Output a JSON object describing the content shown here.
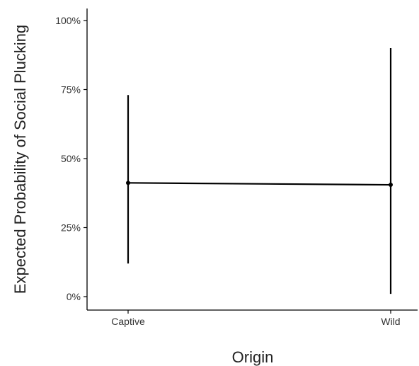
{
  "chart_data": {
    "type": "line",
    "categories": [
      "Captive",
      "Wild"
    ],
    "series": [
      {
        "values": [
          0.412,
          0.405
        ],
        "lower": [
          0.12,
          0.01
        ],
        "upper": [
          0.73,
          0.9
        ]
      }
    ],
    "xlabel": "Origin",
    "ylabel": "Expected Probability of Social Plucking",
    "ylim": [
      0,
      1.05
    ],
    "yticks": [
      0,
      0.25,
      0.5,
      0.75,
      1.0
    ],
    "ytick_labels": [
      "0%",
      "25%",
      "50%",
      "75%",
      "100%"
    ],
    "grid": false,
    "line_color": "#000000"
  }
}
